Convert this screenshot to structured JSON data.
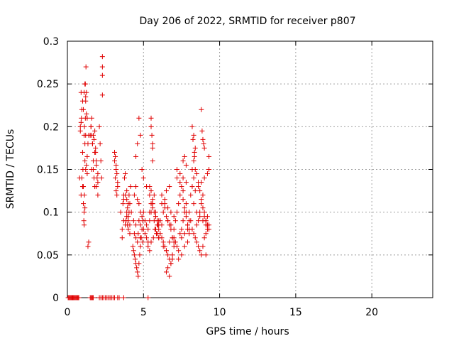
{
  "chart_data": {
    "type": "scatter",
    "title": "Day 206 of 2022, SRMTID for receiver p807",
    "xlabel": "GPS time / hours",
    "ylabel": "SRMTID / TECUs",
    "xlim": [
      0,
      24
    ],
    "ylim": [
      0,
      0.3
    ],
    "xticks": [
      0,
      5,
      10,
      15,
      20
    ],
    "xtick_labels": [
      "0",
      "5",
      "10",
      "15",
      "20"
    ],
    "yticks": [
      0,
      0.05,
      0.1,
      0.15,
      0.2,
      0.25,
      0.3
    ],
    "ytick_labels": [
      "0",
      "0.05",
      "0.1",
      "0.15",
      "0.2",
      "0.25",
      "0.3"
    ],
    "grid": true,
    "marker": "+",
    "color": "#e00000",
    "series": [
      {
        "name": "SRMTID",
        "x": [
          0.05,
          0.1,
          0.15,
          0.2,
          0.25,
          0.3,
          0.35,
          0.4,
          0.45,
          0.5,
          0.55,
          0.6,
          0.65,
          0.7,
          0.75,
          1.5,
          1.55,
          1.6,
          1.65,
          1.7,
          2.1,
          2.2,
          2.3,
          2.4,
          2.5,
          2.6,
          2.7,
          2.8,
          2.9,
          3.0,
          3.1,
          3.3,
          3.4,
          3.7,
          5.3,
          0.8,
          0.85,
          0.9,
          0.92,
          0.95,
          1.0,
          1.02,
          1.05,
          1.08,
          1.1,
          1.12,
          1.15,
          1.18,
          1.2,
          1.22,
          1.25,
          1.3,
          1.35,
          1.4,
          0.9,
          0.95,
          1.0,
          1.05,
          1.1,
          1.15,
          1.2,
          1.25,
          1.3,
          0.85,
          0.9,
          1.0,
          1.05,
          1.1,
          1.15,
          1.2,
          1.3,
          1.35,
          1.4,
          1.1,
          1.12,
          1.15,
          1.18,
          1.2,
          1.25,
          1.5,
          1.55,
          1.6,
          1.65,
          1.7,
          1.75,
          1.8,
          1.85,
          1.9,
          1.95,
          2.0,
          1.55,
          1.6,
          1.65,
          1.7,
          1.75,
          1.8,
          1.85,
          1.9,
          2.0,
          1.6,
          1.7,
          1.8,
          1.9,
          2.0,
          2.1,
          2.15,
          2.2,
          2.25,
          2.3,
          2.3,
          2.3,
          2.3,
          3.1,
          3.15,
          3.2,
          3.25,
          3.3,
          3.15,
          3.2,
          3.25,
          3.3,
          3.1,
          3.2,
          3.5,
          3.6,
          3.65,
          3.7,
          3.75,
          3.8,
          3.85,
          3.9,
          3.95,
          4.0,
          4.05,
          4.1,
          4.15,
          4.2,
          3.6,
          3.7,
          3.8,
          3.9,
          4.0,
          4.1,
          3.9,
          3.95,
          4.0,
          4.05,
          4.1,
          3.7,
          3.8,
          3.9,
          4.0,
          4.3,
          4.35,
          4.4,
          4.45,
          4.5,
          4.55,
          4.6,
          4.65,
          4.7,
          4.75,
          4.8,
          4.85,
          4.9,
          4.95,
          5.0,
          4.4,
          4.5,
          4.6,
          4.7,
          4.8,
          4.9,
          5.0,
          4.35,
          4.5,
          4.65,
          4.8,
          4.95,
          4.5,
          4.6,
          4.7,
          4.8,
          4.9,
          4.4,
          4.5,
          4.6,
          4.7,
          4.8,
          5.0,
          5.1,
          5.2,
          5.3,
          5.4,
          5.5,
          5.6,
          5.7,
          5.8,
          5.9,
          6.0,
          5.1,
          5.2,
          5.3,
          5.4,
          5.5,
          5.6,
          5.7,
          5.8,
          5.9,
          6.0,
          5.2,
          5.4,
          5.6,
          5.8,
          6.0,
          5.5,
          5.5,
          5.55,
          5.6,
          5.6,
          5.6,
          5.3,
          5.4,
          5.5,
          5.65,
          5.75,
          5.85,
          5.95,
          5.4,
          5.5,
          5.6,
          5.7,
          5.8,
          5.9,
          6.0,
          6.0,
          6.1,
          6.2,
          6.3,
          6.4,
          6.5,
          6.6,
          6.7,
          6.8,
          6.9,
          7.0,
          6.1,
          6.2,
          6.3,
          6.4,
          6.5,
          6.6,
          6.7,
          6.8,
          6.9,
          7.0,
          6.2,
          6.4,
          6.6,
          6.8,
          7.0,
          6.5,
          6.6,
          6.7,
          6.8,
          6.9,
          6.3,
          6.5,
          6.7,
          6.9,
          6.2,
          6.4,
          6.6,
          6.8,
          7.0,
          6.5,
          6.7,
          7.0,
          7.1,
          7.2,
          7.3,
          7.4,
          7.5,
          7.6,
          7.7,
          7.8,
          7.9,
          8.0,
          7.1,
          7.2,
          7.3,
          7.4,
          7.5,
          7.6,
          7.7,
          7.8,
          7.9,
          8.0,
          7.2,
          7.4,
          7.6,
          7.8,
          8.0,
          7.3,
          7.5,
          7.7,
          7.9,
          7.2,
          7.4,
          7.6,
          7.8,
          7.6,
          7.7,
          7.8,
          7.5,
          7.7,
          7.9,
          8.0,
          8.1,
          8.2,
          8.3,
          8.4,
          8.5,
          8.6,
          8.7,
          8.8,
          8.9,
          9.0,
          9.1,
          9.2,
          9.3,
          8.1,
          8.2,
          8.3,
          8.4,
          8.5,
          8.6,
          8.7,
          8.8,
          8.9,
          9.0,
          9.1,
          9.2,
          8.2,
          8.3,
          8.35,
          8.4,
          8.2,
          8.25,
          8.3,
          8.35,
          8.8,
          8.85,
          8.9,
          8.95,
          9.0,
          8.5,
          8.6,
          8.7,
          8.8,
          8.9,
          9.0,
          9.1,
          9.2,
          9.3,
          8.3,
          8.5,
          8.7,
          8.9,
          9.1,
          8.4,
          8.6,
          8.8,
          9.0,
          9.2,
          9.3,
          9.3,
          9.2,
          9.1
        ],
        "y": [
          0,
          0,
          0,
          0,
          0,
          0,
          0,
          0,
          0,
          0,
          0,
          0,
          0,
          0,
          0,
          0,
          0,
          0,
          0,
          0,
          0,
          0,
          0,
          0,
          0,
          0,
          0,
          0,
          0,
          0,
          0,
          0,
          0,
          0,
          0,
          0.14,
          0.2,
          0.24,
          0.21,
          0.22,
          0.17,
          0.15,
          0.13,
          0.09,
          0.1,
          0.12,
          0.16,
          0.25,
          0.23,
          0.27,
          0.24,
          0.21,
          0.18,
          0.19,
          0.12,
          0.14,
          0.13,
          0.11,
          0.085,
          0.105,
          0.15,
          0.155,
          0.145,
          0.195,
          0.205,
          0.23,
          0.22,
          0.24,
          0.18,
          0.19,
          0.165,
          0.06,
          0.065,
          0.19,
          0.2,
          0.25,
          0.21,
          0.235,
          0.215,
          0.19,
          0.2,
          0.21,
          0.18,
          0.19,
          0.185,
          0.195,
          0.17,
          0.16,
          0.14,
          0.135,
          0.2,
          0.19,
          0.18,
          0.15,
          0.14,
          0.13,
          0.175,
          0.155,
          0.145,
          0.15,
          0.16,
          0.17,
          0.13,
          0.12,
          0.2,
          0.18,
          0.16,
          0.14,
          0.282,
          0.27,
          0.26,
          0.237,
          0.17,
          0.165,
          0.155,
          0.145,
          0.13,
          0.14,
          0.125,
          0.12,
          0.135,
          0.16,
          0.15,
          0.1,
          0.08,
          0.11,
          0.12,
          0.14,
          0.145,
          0.09,
          0.1,
          0.085,
          0.095,
          0.12,
          0.11,
          0.13,
          0.1,
          0.07,
          0.09,
          0.085,
          0.095,
          0.08,
          0.075,
          0.115,
          0.105,
          0.09,
          0.1,
          0.085,
          0.115,
          0.12,
          0.125,
          0.11,
          0.06,
          0.055,
          0.05,
          0.045,
          0.04,
          0.035,
          0.03,
          0.025,
          0.04,
          0.05,
          0.06,
          0.07,
          0.08,
          0.09,
          0.1,
          0.12,
          0.13,
          0.115,
          0.11,
          0.1,
          0.095,
          0.14,
          0.09,
          0.085,
          0.075,
          0.07,
          0.065,
          0.165,
          0.18,
          0.21,
          0.19,
          0.15,
          0.075,
          0.07,
          0.065,
          0.09,
          0.085,
          0.08,
          0.075,
          0.07,
          0.065,
          0.09,
          0.1,
          0.11,
          0.12,
          0.095,
          0.085,
          0.07,
          0.09,
          0.085,
          0.08,
          0.1,
          0.11,
          0.105,
          0.09,
          0.08,
          0.075,
          0.07,
          0.13,
          0.12,
          0.11,
          0.1,
          0.09,
          0.21,
          0.2,
          0.19,
          0.18,
          0.175,
          0.16,
          0.06,
          0.055,
          0.065,
          0.07,
          0.08,
          0.075,
          0.085,
          0.13,
          0.125,
          0.115,
          0.1,
          0.095,
          0.09,
          0.085,
          0.08,
          0.075,
          0.07,
          0.065,
          0.06,
          0.055,
          0.05,
          0.045,
          0.04,
          0.05,
          0.06,
          0.09,
          0.085,
          0.1,
          0.11,
          0.095,
          0.09,
          0.085,
          0.08,
          0.07,
          0.065,
          0.12,
          0.115,
          0.105,
          0.1,
          0.095,
          0.03,
          0.035,
          0.025,
          0.04,
          0.045,
          0.06,
          0.055,
          0.065,
          0.07,
          0.11,
          0.105,
          0.09,
          0.085,
          0.08,
          0.125,
          0.13,
          0.07,
          0.065,
          0.06,
          0.055,
          0.075,
          0.08,
          0.09,
          0.1,
          0.11,
          0.085,
          0.08,
          0.09,
          0.1,
          0.11,
          0.12,
          0.13,
          0.115,
          0.105,
          0.095,
          0.085,
          0.075,
          0.14,
          0.135,
          0.125,
          0.1,
          0.09,
          0.045,
          0.05,
          0.06,
          0.065,
          0.15,
          0.145,
          0.14,
          0.135,
          0.16,
          0.165,
          0.155,
          0.07,
          0.075,
          0.08,
          0.1,
          0.09,
          0.08,
          0.075,
          0.07,
          0.085,
          0.09,
          0.1,
          0.11,
          0.12,
          0.1,
          0.09,
          0.085,
          0.08,
          0.12,
          0.13,
          0.14,
          0.15,
          0.145,
          0.135,
          0.125,
          0.115,
          0.105,
          0.095,
          0.09,
          0.085,
          0.15,
          0.16,
          0.17,
          0.175,
          0.2,
          0.185,
          0.19,
          0.165,
          0.22,
          0.195,
          0.185,
          0.18,
          0.175,
          0.065,
          0.06,
          0.055,
          0.05,
          0.06,
          0.07,
          0.075,
          0.08,
          0.085,
          0.11,
          0.1,
          0.095,
          0.09,
          0.085,
          0.125,
          0.13,
          0.135,
          0.14,
          0.145,
          0.15,
          0.165,
          0.095,
          0.05
        ]
      }
    ]
  }
}
